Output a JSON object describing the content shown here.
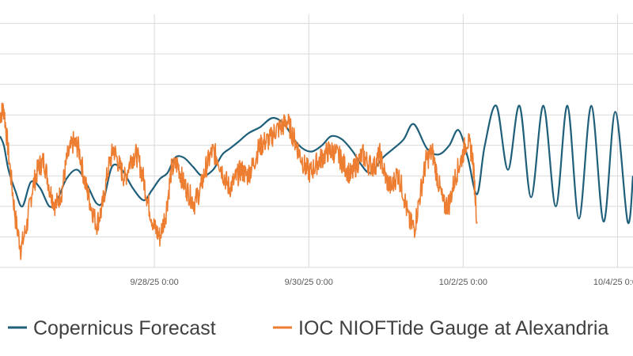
{
  "chart_data": {
    "type": "line",
    "title": "",
    "xlabel": "",
    "ylabel": "",
    "x_unit": "days",
    "xlim": [
      0,
      8.2
    ],
    "ylim": [
      0,
      8.3
    ],
    "x_ticks": [
      {
        "x": 2,
        "label": "9/28/25 0:00"
      },
      {
        "x": 4,
        "label": "9/30/25 0:00"
      },
      {
        "x": 6,
        "label": "10/2/25 0:00"
      },
      {
        "x": 8,
        "label": "10/4/25 0:00"
      }
    ],
    "y_gridlines": [
      0,
      1,
      2,
      3,
      4,
      5,
      6,
      7,
      8
    ],
    "legend_position": "bottom",
    "series": [
      {
        "name": "Copernicus Forecast",
        "color": "#1f5f7a",
        "x": [
          0,
          0.05,
          0.11,
          0.2,
          0.29,
          0.4,
          0.52,
          0.64,
          0.74,
          0.86,
          1,
          1.13,
          1.25,
          1.34,
          1.45,
          1.58,
          1.72,
          1.86,
          1.96,
          2.07,
          2.17,
          2.27,
          2.38,
          2.5,
          2.62,
          2.76,
          2.88,
          2.98,
          3.08,
          3.22,
          3.37,
          3.53,
          3.68,
          3.81,
          3.92,
          4.04,
          4.17,
          4.29,
          4.43,
          4.57,
          4.67,
          4.8,
          4.96,
          5.1,
          5.23,
          5.36,
          5.53,
          5.68,
          5.82,
          5.94,
          6.06,
          6.18,
          6.28,
          6.43,
          6.58,
          6.73,
          6.88,
          7.04,
          7.2,
          7.35,
          7.5,
          7.66,
          7.82,
          7.97,
          8.13,
          8.2
        ],
        "y": [
          4.3,
          4.0,
          3.2,
          2.5,
          2.0,
          2.8,
          2.6,
          2.0,
          2.2,
          2.9,
          3.2,
          2.7,
          2.1,
          2.2,
          3.3,
          3.2,
          2.6,
          2.2,
          2.5,
          2.9,
          3.1,
          3.6,
          3.6,
          3.3,
          3.0,
          3.2,
          3.7,
          3.9,
          4.1,
          4.4,
          4.6,
          4.9,
          4.7,
          4.2,
          3.9,
          3.8,
          4.0,
          4.3,
          4.2,
          3.8,
          3.4,
          3.1,
          3.6,
          3.9,
          4.2,
          4.7,
          3.9,
          3.7,
          4.0,
          4.5,
          3.6,
          2.4,
          4.0,
          5.3,
          3.2,
          5.3,
          2.3,
          5.3,
          2.0,
          5.3,
          1.6,
          5.3,
          1.5,
          5.1,
          1.5,
          3.0
        ]
      },
      {
        "name": "IOC NIOFTide Gauge at  Alexandria",
        "color": "#ed7d31",
        "x": [
          0,
          0.05,
          0.12,
          0.2,
          0.27,
          0.35,
          0.42,
          0.5,
          0.57,
          0.65,
          0.72,
          0.8,
          0.87,
          0.95,
          1.02,
          1.1,
          1.17,
          1.25,
          1.32,
          1.4,
          1.47,
          1.55,
          1.62,
          1.7,
          1.77,
          1.85,
          1.92,
          2.0,
          2.07,
          2.15,
          2.22,
          2.3,
          2.37,
          2.45,
          2.52,
          2.6,
          2.67,
          2.75,
          2.82,
          2.9,
          2.97,
          3.05,
          3.12,
          3.2,
          3.27,
          3.35,
          3.42,
          3.5,
          3.57,
          3.65,
          3.72,
          3.8,
          3.87,
          3.95,
          4.02,
          4.1,
          4.17,
          4.25,
          4.32,
          4.4,
          4.47,
          4.55,
          4.62,
          4.7,
          4.77,
          4.85,
          4.92,
          5.0,
          5.07,
          5.15,
          5.22,
          5.3,
          5.37,
          5.45,
          5.52,
          5.6,
          5.67,
          5.75,
          5.82,
          5.9,
          5.97,
          6.05,
          6.12,
          6.18
        ],
        "y": [
          5.0,
          5.2,
          3.5,
          1.6,
          0.6,
          1.4,
          2.6,
          3.3,
          3.5,
          2.5,
          2.0,
          2.5,
          3.6,
          4.1,
          3.9,
          2.8,
          2.1,
          1.4,
          1.9,
          3.2,
          3.9,
          3.3,
          2.9,
          3.6,
          3.7,
          3.0,
          2.1,
          1.3,
          1.0,
          1.8,
          3.2,
          3.4,
          2.8,
          2.4,
          2.1,
          2.6,
          3.3,
          3.8,
          3.6,
          3.0,
          2.6,
          2.9,
          3.2,
          3.0,
          3.3,
          3.9,
          4.1,
          4.2,
          4.5,
          4.6,
          4.8,
          4.3,
          3.8,
          3.3,
          3.1,
          3.4,
          3.6,
          3.8,
          3.8,
          3.6,
          3.3,
          3.0,
          3.4,
          3.7,
          3.4,
          3.3,
          3.7,
          2.9,
          2.6,
          3.1,
          2.5,
          1.5,
          1.3,
          2.5,
          3.5,
          3.8,
          2.9,
          2.0,
          2.1,
          3.0,
          3.5,
          4.2,
          3.7,
          1.5
        ]
      }
    ]
  }
}
